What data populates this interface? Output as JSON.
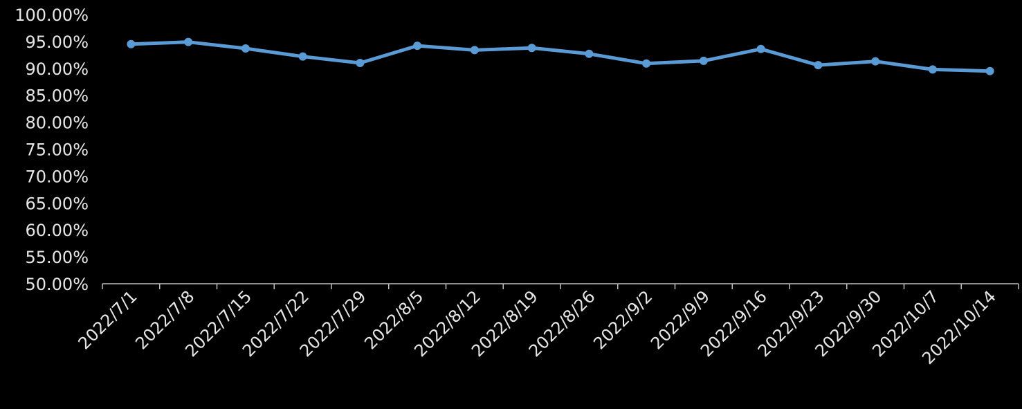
{
  "chart_data": {
    "type": "line",
    "categories": [
      "2022/7/1",
      "2022/7/8",
      "2022/7/15",
      "2022/7/22",
      "2022/7/29",
      "2022/8/5",
      "2022/8/12",
      "2022/8/19",
      "2022/8/26",
      "2022/9/2",
      "2022/9/9",
      "2022/9/16",
      "2022/9/23",
      "2022/9/30",
      "2022/10/7",
      "2022/10/14"
    ],
    "values": [
      94.5,
      94.9,
      93.7,
      92.2,
      91.0,
      94.2,
      93.4,
      93.8,
      92.7,
      90.9,
      91.4,
      93.6,
      90.6,
      91.3,
      89.8,
      89.5
    ],
    "color": "#5b9bd5",
    "ylim": [
      50,
      100
    ],
    "yticks": [
      {
        "value": 50,
        "label": "50.00%"
      },
      {
        "value": 55,
        "label": "55.00%"
      },
      {
        "value": 60,
        "label": "60.00%"
      },
      {
        "value": 65,
        "label": "65.00%"
      },
      {
        "value": 70,
        "label": "70.00%"
      },
      {
        "value": 75,
        "label": "75.00%"
      },
      {
        "value": 80,
        "label": "80.00%"
      },
      {
        "value": 85,
        "label": "85.00%"
      },
      {
        "value": 90,
        "label": "90.00%"
      },
      {
        "value": 95,
        "label": "95.00%"
      },
      {
        "value": 100,
        "label": "100.00%"
      }
    ],
    "grid": false
  }
}
